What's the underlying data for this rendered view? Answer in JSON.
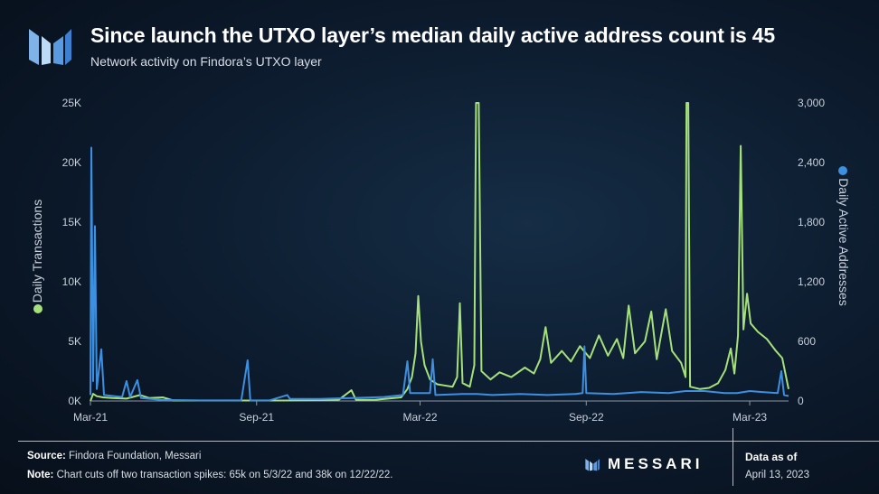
{
  "header": {
    "title": "Since launch the UTXO layer’s median daily active address count is 45",
    "subtitle": "Network activity on Findora’s UTXO layer"
  },
  "footer": {
    "source_label": "Source:",
    "source_text": "Findora Foundation, Messari",
    "note_label": "Note:",
    "note_text": "Chart cuts off two transaction spikes: 65k on 5/3/22 and 38k on 12/22/22.",
    "brand": "MESSARI",
    "data_as_of_label": "Data as of",
    "data_as_of_date": "April 13, 2023"
  },
  "colors": {
    "transactions": "#a6e07a",
    "addresses": "#3d8fe0",
    "background": "#0c1a2c"
  },
  "chart_data": {
    "type": "line",
    "x_tick_labels": [
      "Mar-21",
      "Sep-21",
      "Mar-22",
      "Sep-22",
      "Mar-23"
    ],
    "x_tick_dates": [
      "2021-03-01",
      "2021-09-01",
      "2022-03-01",
      "2022-09-01",
      "2023-03-01"
    ],
    "xlim": [
      "2021-03-01",
      "2023-04-13"
    ],
    "y_left": {
      "label": "Daily Transactions",
      "ticks": [
        "0K",
        "5K",
        "10K",
        "15K",
        "20K",
        "25K"
      ],
      "lim": [
        0,
        25000
      ]
    },
    "y_right": {
      "label": "Daily Active Addresses",
      "ticks": [
        "0",
        "600",
        "1,200",
        "1,800",
        "2,400",
        "3,000"
      ],
      "lim": [
        0,
        3000
      ]
    },
    "grid": false,
    "legend": "axis-titles",
    "series": [
      {
        "name": "Daily Transactions",
        "axis": "left",
        "points": [
          [
            "2021-03-01",
            0
          ],
          [
            "2021-03-04",
            600
          ],
          [
            "2021-03-08",
            400
          ],
          [
            "2021-03-15",
            300
          ],
          [
            "2021-03-25",
            250
          ],
          [
            "2021-04-10",
            200
          ],
          [
            "2021-04-25",
            500
          ],
          [
            "2021-05-05",
            250
          ],
          [
            "2021-05-20",
            300
          ],
          [
            "2021-06-01",
            40
          ],
          [
            "2021-08-01",
            40
          ],
          [
            "2021-10-01",
            40
          ],
          [
            "2021-12-01",
            100
          ],
          [
            "2021-12-15",
            900
          ],
          [
            "2021-12-20",
            100
          ],
          [
            "2022-01-10",
            100
          ],
          [
            "2022-02-08",
            300
          ],
          [
            "2022-02-15",
            1000
          ],
          [
            "2022-02-20",
            2000
          ],
          [
            "2022-02-24",
            4000
          ],
          [
            "2022-02-27",
            8800
          ],
          [
            "2022-03-02",
            5000
          ],
          [
            "2022-03-06",
            3000
          ],
          [
            "2022-03-12",
            1800
          ],
          [
            "2022-03-20",
            1400
          ],
          [
            "2022-03-28",
            1300
          ],
          [
            "2022-04-06",
            1200
          ],
          [
            "2022-04-11",
            2000
          ],
          [
            "2022-04-14",
            8200
          ],
          [
            "2022-04-17",
            1500
          ],
          [
            "2022-04-25",
            1200
          ],
          [
            "2022-04-30",
            3000
          ],
          [
            "2022-05-02",
            25000
          ],
          [
            "2022-05-05",
            25000
          ],
          [
            "2022-05-08",
            2500
          ],
          [
            "2022-05-18",
            1800
          ],
          [
            "2022-05-28",
            2400
          ],
          [
            "2022-06-10",
            2000
          ],
          [
            "2022-06-25",
            2800
          ],
          [
            "2022-07-05",
            2300
          ],
          [
            "2022-07-12",
            3500
          ],
          [
            "2022-07-18",
            6200
          ],
          [
            "2022-07-24",
            3200
          ],
          [
            "2022-08-05",
            4200
          ],
          [
            "2022-08-15",
            3300
          ],
          [
            "2022-08-25",
            4600
          ],
          [
            "2022-09-05",
            3600
          ],
          [
            "2022-09-15",
            5500
          ],
          [
            "2022-09-25",
            3800
          ],
          [
            "2022-10-05",
            5200
          ],
          [
            "2022-10-12",
            3600
          ],
          [
            "2022-10-18",
            8000
          ],
          [
            "2022-10-25",
            4000
          ],
          [
            "2022-11-05",
            5000
          ],
          [
            "2022-11-12",
            7500
          ],
          [
            "2022-11-18",
            3500
          ],
          [
            "2022-11-28",
            7700
          ],
          [
            "2022-12-05",
            4200
          ],
          [
            "2022-12-15",
            3200
          ],
          [
            "2022-12-20",
            2000
          ],
          [
            "2022-12-21",
            25000
          ],
          [
            "2022-12-23",
            25000
          ],
          [
            "2022-12-25",
            1200
          ],
          [
            "2023-01-05",
            1000
          ],
          [
            "2023-01-15",
            1100
          ],
          [
            "2023-01-25",
            1500
          ],
          [
            "2023-02-02",
            2600
          ],
          [
            "2023-02-08",
            4400
          ],
          [
            "2023-02-12",
            2300
          ],
          [
            "2023-02-16",
            5500
          ],
          [
            "2023-02-19",
            21400
          ],
          [
            "2023-02-22",
            6000
          ],
          [
            "2023-02-26",
            9000
          ],
          [
            "2023-03-02",
            6500
          ],
          [
            "2023-03-10",
            5800
          ],
          [
            "2023-03-20",
            5200
          ],
          [
            "2023-03-30",
            4200
          ],
          [
            "2023-04-06",
            3600
          ],
          [
            "2023-04-13",
            1000
          ]
        ]
      },
      {
        "name": "Daily Active Addresses",
        "axis": "right",
        "points": [
          [
            "2021-03-01",
            60
          ],
          [
            "2021-03-02",
            2550
          ],
          [
            "2021-03-04",
            200
          ],
          [
            "2021-03-06",
            1760
          ],
          [
            "2021-03-08",
            120
          ],
          [
            "2021-03-13",
            520
          ],
          [
            "2021-03-16",
            60
          ],
          [
            "2021-04-05",
            40
          ],
          [
            "2021-04-10",
            200
          ],
          [
            "2021-04-14",
            40
          ],
          [
            "2021-04-22",
            210
          ],
          [
            "2021-04-26",
            30
          ],
          [
            "2021-05-20",
            10
          ],
          [
            "2021-07-01",
            5
          ],
          [
            "2021-08-15",
            5
          ],
          [
            "2021-08-22",
            410
          ],
          [
            "2021-08-25",
            5
          ],
          [
            "2021-09-15",
            5
          ],
          [
            "2021-10-05",
            60
          ],
          [
            "2021-10-08",
            20
          ],
          [
            "2021-11-10",
            20
          ],
          [
            "2022-01-20",
            40
          ],
          [
            "2022-02-10",
            60
          ],
          [
            "2022-02-15",
            400
          ],
          [
            "2022-02-18",
            80
          ],
          [
            "2022-03-01",
            80
          ],
          [
            "2022-03-12",
            80
          ],
          [
            "2022-03-15",
            420
          ],
          [
            "2022-03-18",
            60
          ],
          [
            "2022-04-15",
            70
          ],
          [
            "2022-05-03",
            70
          ],
          [
            "2022-05-20",
            60
          ],
          [
            "2022-06-20",
            70
          ],
          [
            "2022-07-20",
            60
          ],
          [
            "2022-08-20",
            70
          ],
          [
            "2022-08-28",
            80
          ],
          [
            "2022-08-30",
            550
          ],
          [
            "2022-09-01",
            80
          ],
          [
            "2022-10-01",
            70
          ],
          [
            "2022-11-01",
            90
          ],
          [
            "2022-12-01",
            80
          ],
          [
            "2022-12-20",
            100
          ],
          [
            "2023-01-10",
            100
          ],
          [
            "2023-02-01",
            80
          ],
          [
            "2023-02-15",
            80
          ],
          [
            "2023-03-01",
            100
          ],
          [
            "2023-03-15",
            90
          ],
          [
            "2023-04-01",
            80
          ],
          [
            "2023-04-05",
            300
          ],
          [
            "2023-04-08",
            60
          ],
          [
            "2023-04-13",
            50
          ]
        ]
      }
    ]
  }
}
